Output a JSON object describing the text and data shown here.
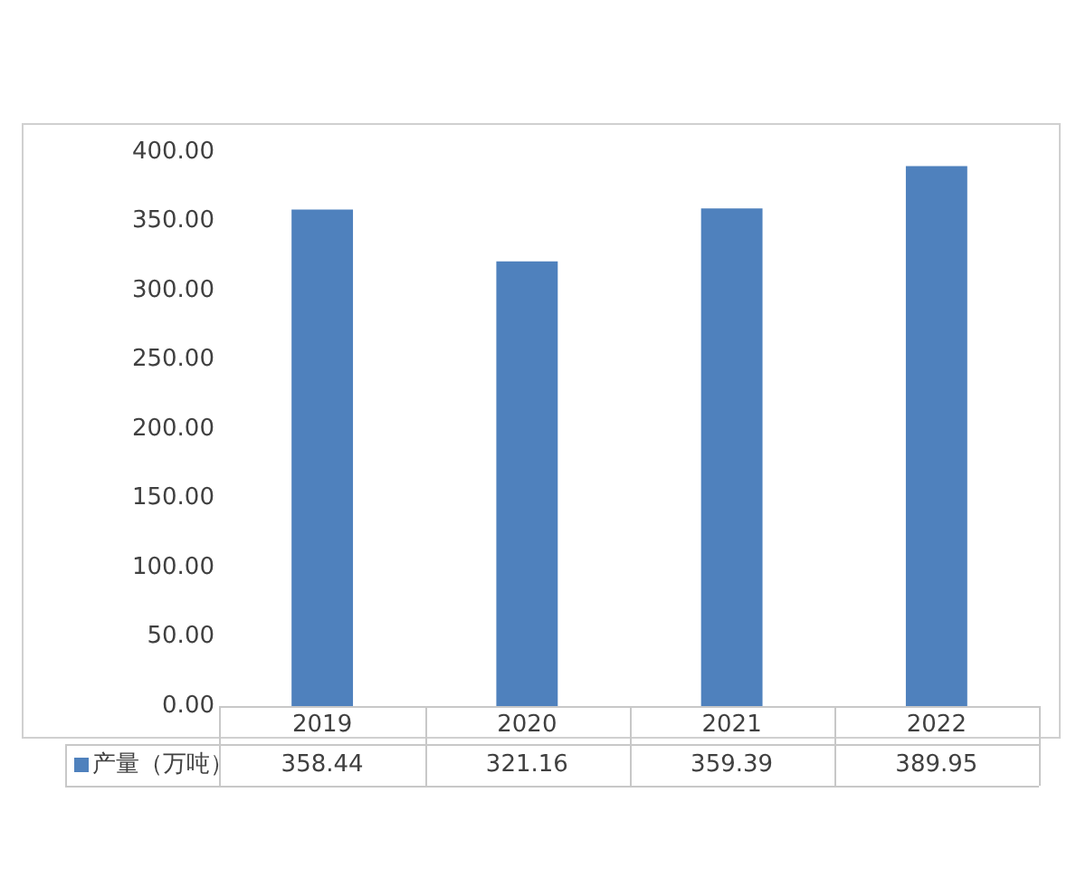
{
  "chart_data": {
    "type": "bar",
    "categories": [
      "2019",
      "2020",
      "2021",
      "2022"
    ],
    "series": [
      {
        "name": "产量（万吨）",
        "color": "#4f81bd",
        "values": [
          358.44,
          321.16,
          359.39,
          389.95
        ]
      }
    ],
    "ylim": [
      0,
      400
    ],
    "yticks": [
      {
        "value": 0,
        "label": "0.00"
      },
      {
        "value": 50,
        "label": "50.00"
      },
      {
        "value": 100,
        "label": "100.00"
      },
      {
        "value": 150,
        "label": "150.00"
      },
      {
        "value": 200,
        "label": "200.00"
      },
      {
        "value": 250,
        "label": "250.00"
      },
      {
        "value": 300,
        "label": "300.00"
      },
      {
        "value": 350,
        "label": "350.00"
      },
      {
        "value": 400,
        "label": "400.00"
      }
    ],
    "grid": false,
    "data_labels": true
  }
}
